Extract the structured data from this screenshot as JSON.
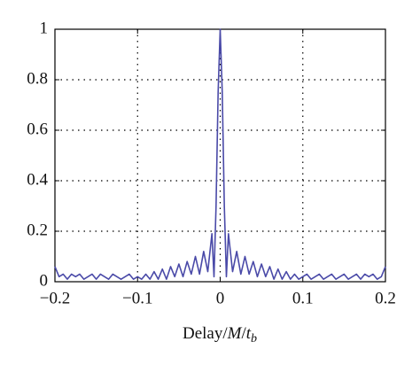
{
  "chart_data": {
    "type": "line",
    "x_label": {
      "word": "Delay/",
      "var1": "M",
      "slash": "/",
      "var2": "t",
      "sub": "b"
    },
    "x": [
      -0.2,
      -0.195,
      -0.19,
      -0.185,
      -0.18,
      -0.175,
      -0.17,
      -0.165,
      -0.16,
      -0.155,
      -0.15,
      -0.145,
      -0.14,
      -0.135,
      -0.13,
      -0.125,
      -0.12,
      -0.115,
      -0.11,
      -0.105,
      -0.1,
      -0.095,
      -0.09,
      -0.085,
      -0.08,
      -0.075,
      -0.07,
      -0.065,
      -0.06,
      -0.055,
      -0.05,
      -0.045,
      -0.04,
      -0.035,
      -0.03,
      -0.025,
      -0.02,
      -0.015,
      -0.01,
      -0.0075,
      -0.005,
      -0.0025,
      0,
      0.0025,
      0.005,
      0.0075,
      0.01,
      0.015,
      0.02,
      0.025,
      0.03,
      0.035,
      0.04,
      0.045,
      0.05,
      0.055,
      0.06,
      0.065,
      0.07,
      0.075,
      0.08,
      0.085,
      0.09,
      0.095,
      0.1,
      0.105,
      0.11,
      0.115,
      0.12,
      0.125,
      0.13,
      0.135,
      0.14,
      0.145,
      0.15,
      0.155,
      0.16,
      0.165,
      0.17,
      0.175,
      0.18,
      0.185,
      0.19,
      0.195,
      0.2
    ],
    "series": [
      {
        "color": "#4a4aa8",
        "values": [
          0.06,
          0.02,
          0.03,
          0.01,
          0.03,
          0.02,
          0.03,
          0.01,
          0.02,
          0.03,
          0.01,
          0.03,
          0.02,
          0.01,
          0.03,
          0.02,
          0.01,
          0.02,
          0.03,
          0.01,
          0.02,
          0.01,
          0.03,
          0.01,
          0.04,
          0.01,
          0.05,
          0.01,
          0.06,
          0.02,
          0.07,
          0.02,
          0.08,
          0.03,
          0.1,
          0.03,
          0.12,
          0.04,
          0.19,
          0.02,
          0.3,
          0.75,
          1,
          0.75,
          0.3,
          0.02,
          0.19,
          0.04,
          0.12,
          0.03,
          0.1,
          0.03,
          0.08,
          0.02,
          0.07,
          0.02,
          0.06,
          0.01,
          0.05,
          0.01,
          0.04,
          0.01,
          0.03,
          0.01,
          0.02,
          0.03,
          0.01,
          0.02,
          0.03,
          0.01,
          0.02,
          0.03,
          0.01,
          0.02,
          0.03,
          0.01,
          0.02,
          0.03,
          0.01,
          0.03,
          0.02,
          0.03,
          0.01,
          0.02,
          0.06
        ]
      }
    ],
    "xlim": [
      -0.2,
      0.2
    ],
    "xticks": [
      {
        "value": -0.2,
        "label": "−0.2"
      },
      {
        "value": -0.1,
        "label": "−0.1"
      },
      0,
      0.1,
      0.2
    ],
    "ylim": [
      0,
      1
    ],
    "yticks": [
      0,
      0.2,
      0.4,
      0.6,
      0.8,
      1
    ],
    "grid": true
  }
}
